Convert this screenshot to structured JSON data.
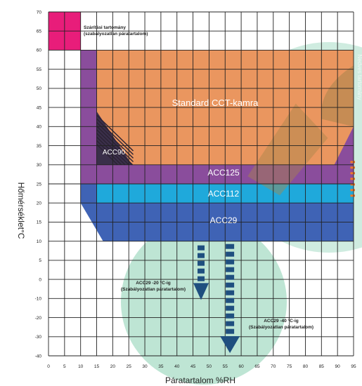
{
  "chart_data": {
    "type": "area",
    "xlabel": "Páratartalom %RH",
    "ylabel": "Hőmérséklet°C",
    "xlim": [
      0,
      95
    ],
    "ylim": [
      -40,
      70
    ],
    "x_ticks": [
      "0",
      "5",
      "10",
      "15",
      "20",
      "25",
      "30",
      "35",
      "40",
      "45",
      "50",
      "55",
      "60",
      "65",
      "70",
      "75",
      "80",
      "85",
      "90",
      "95"
    ],
    "y_ticks": [
      "70",
      "65",
      "60",
      "55",
      "50",
      "45",
      "40",
      "35",
      "30",
      "25",
      "20",
      "15",
      "10",
      "5",
      "0",
      "-10",
      "-20",
      "-30",
      "-40"
    ],
    "grid": true,
    "regions": [
      {
        "name": "ACC29",
        "color": "#3f63b5",
        "polygon": [
          [
            10,
            35
          ],
          [
            95,
            35
          ],
          [
            95,
            10
          ],
          [
            17,
            10
          ],
          [
            10,
            20
          ]
        ]
      },
      {
        "name": "ACC112",
        "color": "#1fa9db",
        "polygon": [
          [
            15,
            30
          ],
          [
            95,
            30
          ],
          [
            95,
            20
          ],
          [
            15,
            20
          ]
        ]
      },
      {
        "name": "ACC125",
        "color": "#8a4d9c",
        "polygon": [
          [
            10,
            60
          ],
          [
            95,
            60
          ],
          [
            95,
            25
          ],
          [
            10,
            25
          ]
        ]
      },
      {
        "name": "ACC90",
        "color": "#3a2f4a",
        "polygon": [
          [
            15,
            44
          ],
          [
            15,
            30
          ],
          [
            26,
            30
          ]
        ]
      },
      {
        "name": "Standard CCT-kamra",
        "color": "#ef9a5c",
        "polygon": [
          [
            15,
            60
          ],
          [
            95,
            60
          ],
          [
            95,
            40
          ],
          [
            89,
            30
          ],
          [
            26,
            30
          ],
          [
            15,
            44
          ]
        ]
      },
      {
        "name": "Szárítási tartomány",
        "color": "#e81d7a",
        "polygon": [
          [
            0,
            70
          ],
          [
            10,
            70
          ],
          [
            10,
            60
          ],
          [
            0,
            60
          ]
        ]
      }
    ],
    "annotations": [
      {
        "text_line1": "Szárítási tartomány",
        "text_line2": "(szabályozatlan páratartalom)"
      },
      {
        "text_line1": "ACC29 -20 °C-ig",
        "text_line2": "(Szabályozatlan páratartalom)"
      },
      {
        "text_line1": "ACC29 -40 °C-ig",
        "text_line2": "(Szabályozatlan páratartalom)"
      }
    ],
    "vertical_side_text": "Nedves tartomány"
  },
  "colors": {
    "grid": "#222222",
    "watermark": "#a8dcc6",
    "arrow": "#1f4f7f",
    "cct_overlay": "#a8854a"
  }
}
